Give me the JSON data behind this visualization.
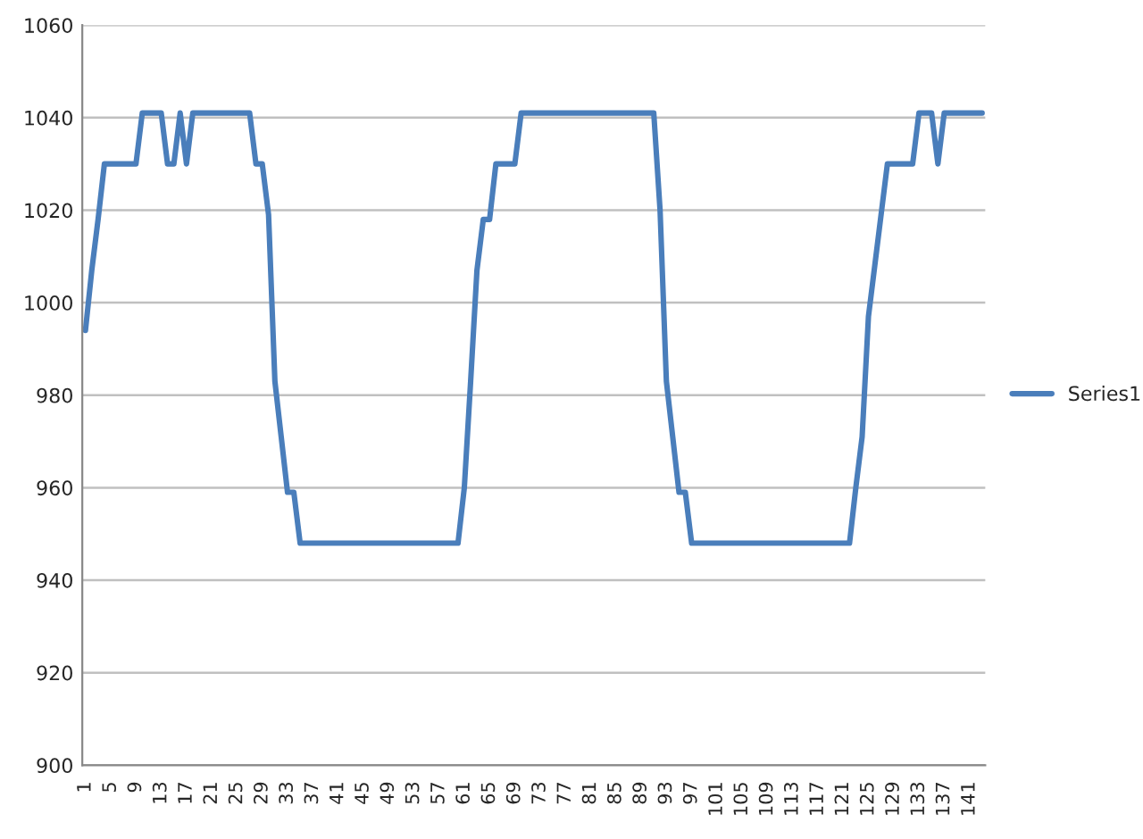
{
  "chart_data": {
    "type": "line",
    "categories": [
      "1",
      null,
      null,
      null,
      "5",
      null,
      null,
      null,
      "9",
      null,
      null,
      null,
      "13",
      null,
      null,
      null,
      "17",
      null,
      null,
      null,
      "21",
      null,
      null,
      null,
      "25",
      null,
      null,
      null,
      "29",
      null,
      null,
      null,
      "33",
      null,
      null,
      null,
      "37",
      null,
      null,
      null,
      "41",
      null,
      null,
      null,
      "45",
      null,
      null,
      null,
      "49",
      null,
      null,
      null,
      "53",
      null,
      null,
      null,
      "57",
      null,
      null,
      null,
      "61",
      null,
      null,
      null,
      "65",
      null,
      null,
      null,
      "69",
      null,
      null,
      null,
      "73",
      null,
      null,
      null,
      "77",
      null,
      null,
      null,
      "81",
      null,
      null,
      null,
      "85",
      null,
      null,
      null,
      "89",
      null,
      null,
      null,
      "93",
      null,
      null,
      null,
      "97",
      null,
      null,
      null,
      "101",
      null,
      null,
      null,
      "105",
      null,
      null,
      null,
      "109",
      null,
      null,
      null,
      "113",
      null,
      null,
      null,
      "117",
      null,
      null,
      null,
      "121",
      null,
      null,
      null,
      "125",
      null,
      null,
      null,
      "129",
      null,
      null,
      null,
      "133",
      null,
      null,
      null,
      "137",
      null,
      null,
      null,
      "141",
      null,
      null
    ],
    "series": [
      {
        "name": "Series1",
        "color": "#4a7ebb",
        "values": [
          994,
          1007,
          1018,
          1030,
          1030,
          1030,
          1030,
          1030,
          1030,
          1041,
          1041,
          1041,
          1041,
          1030,
          1030,
          1041,
          1030,
          1041,
          1041,
          1041,
          1041,
          1041,
          1041,
          1041,
          1041,
          1041,
          1041,
          1030,
          1030,
          1019,
          983,
          971,
          959,
          959,
          948,
          948,
          948,
          948,
          948,
          948,
          948,
          948,
          948,
          948,
          948,
          948,
          948,
          948,
          948,
          948,
          948,
          948,
          948,
          948,
          948,
          948,
          948,
          948,
          948,
          948,
          960,
          983,
          1007,
          1018,
          1018,
          1030,
          1030,
          1030,
          1030,
          1041,
          1041,
          1041,
          1041,
          1041,
          1041,
          1041,
          1041,
          1041,
          1041,
          1041,
          1041,
          1041,
          1041,
          1041,
          1041,
          1041,
          1041,
          1041,
          1041,
          1041,
          1041,
          1020,
          983,
          971,
          959,
          959,
          948,
          948,
          948,
          948,
          948,
          948,
          948,
          948,
          948,
          948,
          948,
          948,
          948,
          948,
          948,
          948,
          948,
          948,
          948,
          948,
          948,
          948,
          948,
          948,
          948,
          948,
          960,
          971,
          997,
          1008,
          1019,
          1030,
          1030,
          1030,
          1030,
          1030,
          1041,
          1041,
          1041,
          1030,
          1041,
          1041,
          1041,
          1041,
          1041,
          1041,
          1041
        ]
      }
    ],
    "ylim": [
      900,
      1060
    ],
    "yticks": [
      900,
      920,
      940,
      960,
      980,
      1000,
      1020,
      1040,
      1060
    ],
    "grid": "y",
    "legend": "right",
    "marker": "none",
    "line_style": "solid"
  }
}
